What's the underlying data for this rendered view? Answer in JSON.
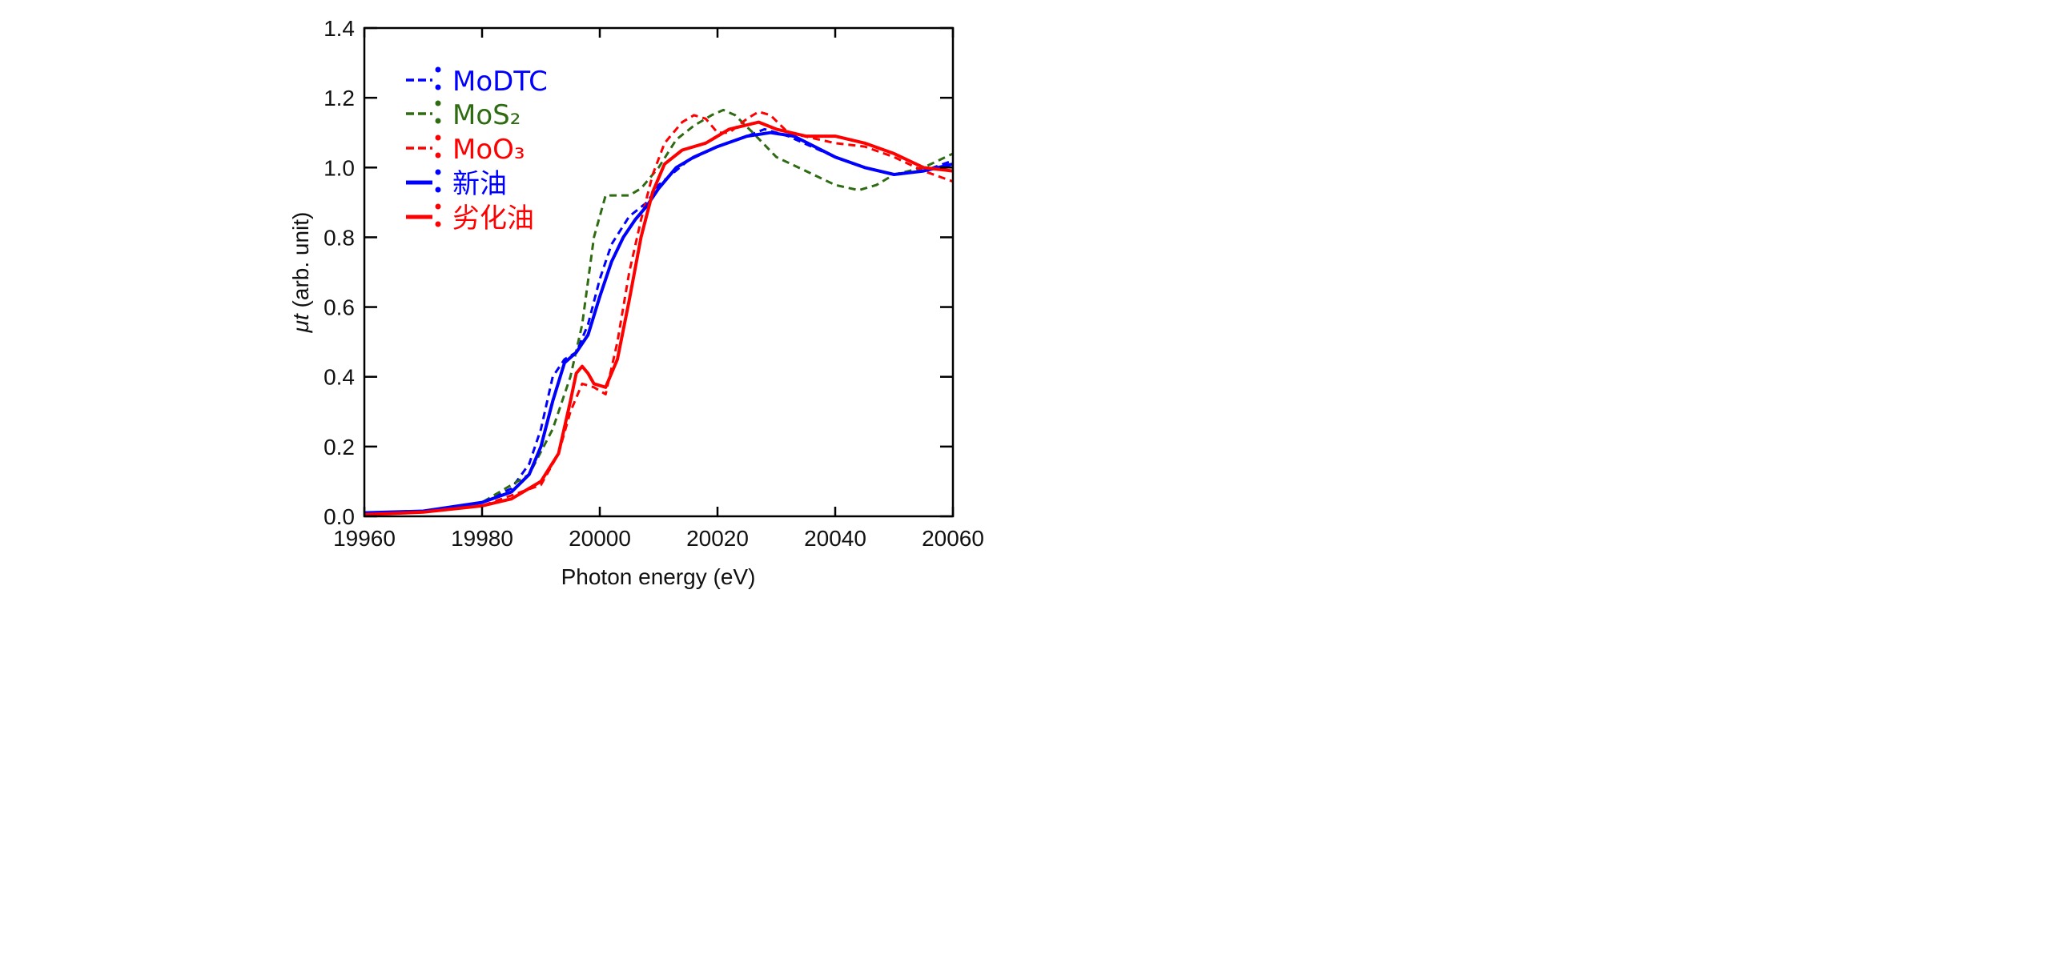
{
  "chart_data": {
    "type": "line",
    "title": "",
    "xlabel": "Photon energy (eV)",
    "ylabel_symbol": "μt",
    "ylabel_rest": " (arb. unit)",
    "xlim": [
      19960,
      20060
    ],
    "ylim": [
      0.0,
      1.4
    ],
    "xticks": [
      19960,
      19980,
      20000,
      20020,
      20040,
      20060
    ],
    "yticks": [
      "0.0",
      "0.2",
      "0.4",
      "0.6",
      "0.8",
      "1.0",
      "1.2",
      "1.4"
    ],
    "grid": false,
    "legend_placement": "top-left",
    "series": [
      {
        "name": "MoDTC",
        "color": "#0000ff",
        "style": "dashed",
        "x": [
          19960,
          19970,
          19980,
          19985,
          19988,
          19990,
          19992,
          19994,
          19996,
          19998,
          20000,
          20002,
          20005,
          20008,
          20010,
          20015,
          20020,
          20025,
          20028,
          20032,
          20040,
          20045,
          20050,
          20055,
          20060
        ],
        "y": [
          0.01,
          0.015,
          0.04,
          0.08,
          0.15,
          0.25,
          0.4,
          0.45,
          0.47,
          0.55,
          0.68,
          0.78,
          0.86,
          0.9,
          0.95,
          1.02,
          1.06,
          1.09,
          1.11,
          1.09,
          1.03,
          1.0,
          0.98,
          0.99,
          1.02
        ]
      },
      {
        "name": "MoS₂",
        "color": "#2e6b12",
        "style": "dashed",
        "x": [
          19960,
          19970,
          19980,
          19988,
          19992,
          19995,
          19997,
          19999,
          20001,
          20003,
          20005,
          20007,
          20010,
          20013,
          20016,
          20019,
          20021,
          20023,
          20026,
          20030,
          20035,
          20040,
          20044,
          20047,
          20050,
          20055,
          20060
        ],
        "y": [
          0.01,
          0.015,
          0.04,
          0.12,
          0.25,
          0.4,
          0.55,
          0.8,
          0.92,
          0.92,
          0.92,
          0.94,
          1.0,
          1.08,
          1.12,
          1.15,
          1.165,
          1.15,
          1.1,
          1.03,
          0.99,
          0.95,
          0.935,
          0.95,
          0.98,
          1.0,
          1.04
        ]
      },
      {
        "name": "MoO₃",
        "color": "#ff0000",
        "style": "dashed",
        "x": [
          19960,
          19970,
          19980,
          19990,
          19993,
          19995,
          19997,
          19999,
          20001,
          20003,
          20005,
          20007,
          20009,
          20011,
          20014,
          20016,
          20018,
          20020,
          20022,
          20025,
          20027,
          20029,
          20032,
          20040,
          20045,
          20050,
          20055,
          20060
        ],
        "y": [
          0.01,
          0.012,
          0.03,
          0.09,
          0.18,
          0.3,
          0.38,
          0.37,
          0.35,
          0.5,
          0.7,
          0.85,
          0.98,
          1.07,
          1.13,
          1.15,
          1.14,
          1.1,
          1.1,
          1.14,
          1.16,
          1.15,
          1.1,
          1.07,
          1.06,
          1.03,
          0.99,
          0.96
        ]
      },
      {
        "name": "新油",
        "color": "#0000ff",
        "style": "solid",
        "x": [
          19960,
          19970,
          19980,
          19985,
          19988,
          19990,
          19992,
          19994,
          19996,
          19998,
          20000,
          20002,
          20004,
          20006,
          20008,
          20010,
          20013,
          20016,
          20020,
          20025,
          20029,
          20033,
          20040,
          20045,
          20050,
          20055,
          20060
        ],
        "y": [
          0.01,
          0.015,
          0.04,
          0.07,
          0.12,
          0.2,
          0.33,
          0.44,
          0.47,
          0.52,
          0.63,
          0.73,
          0.8,
          0.85,
          0.89,
          0.94,
          1.0,
          1.03,
          1.06,
          1.09,
          1.1,
          1.09,
          1.03,
          1.0,
          0.98,
          0.99,
          1.01
        ]
      },
      {
        "name": "劣化油",
        "color": "#ff0000",
        "style": "solid",
        "x": [
          19960,
          19970,
          19980,
          19985,
          19990,
          19993,
          19995,
          19996,
          19997,
          19998,
          19999,
          20001,
          20003,
          20005,
          20007,
          20009,
          20011,
          20014,
          20018,
          20022,
          20027,
          20030,
          20035,
          20040,
          20045,
          20050,
          20055,
          20060
        ],
        "y": [
          0.005,
          0.012,
          0.03,
          0.05,
          0.1,
          0.18,
          0.33,
          0.41,
          0.43,
          0.41,
          0.38,
          0.37,
          0.45,
          0.62,
          0.8,
          0.93,
          1.01,
          1.05,
          1.07,
          1.11,
          1.13,
          1.11,
          1.09,
          1.09,
          1.07,
          1.04,
          1.0,
          0.99
        ]
      }
    ]
  }
}
